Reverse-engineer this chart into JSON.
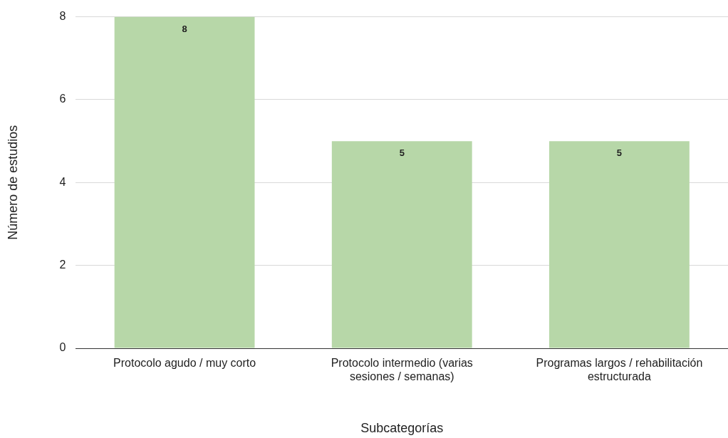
{
  "chart_data": {
    "type": "bar",
    "xlabel": "Subcategorías",
    "ylabel": "Número de estudios",
    "categories": [
      "Protocolo agudo / muy corto",
      "Protocolo intermedio (varias sesiones / semanas)",
      "Programas largos / rehabilitación estructurada"
    ],
    "values": [
      8,
      5,
      5
    ],
    "color": "#b7d7a8",
    "ylim": [
      0,
      8
    ],
    "yticks": [
      0,
      2,
      4,
      6,
      8
    ],
    "grid": "y",
    "data_labels": true
  }
}
